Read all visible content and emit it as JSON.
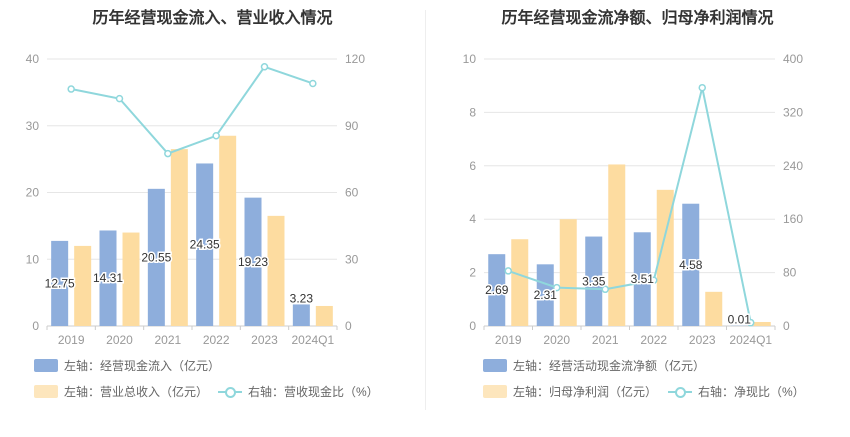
{
  "chart_data": [
    {
      "type": "bar",
      "title": "历年经营现金流入、营业收入情况",
      "categories": [
        "2019",
        "2020",
        "2021",
        "2022",
        "2023",
        "2024Q1"
      ],
      "left_axis": {
        "ticks": [
          "0",
          "10",
          "20",
          "30",
          "40"
        ],
        "ylim": [
          0,
          40
        ]
      },
      "right_axis": {
        "ticks": [
          "0",
          "30",
          "60",
          "90",
          "120"
        ],
        "ylim": [
          0,
          120
        ]
      },
      "series": [
        {
          "name": "左轴：经营现金流入（亿元）",
          "kind": "bar",
          "axis": "left",
          "color": "#8eaedc",
          "values": [
            12.75,
            14.31,
            20.55,
            24.35,
            19.23,
            3.23
          ],
          "labels": [
            "12.75",
            "14.31",
            "20.55",
            "24.35",
            "19.23",
            "3.23"
          ]
        },
        {
          "name": "左轴：营业总收入（亿元）",
          "kind": "bar",
          "axis": "left",
          "color": "#fddca0",
          "values": [
            12.0,
            14.0,
            26.5,
            28.5,
            16.5,
            3.0
          ]
        },
        {
          "name": "右轴：营收现金比（%）",
          "kind": "line",
          "axis": "right",
          "color": "#8fd7dc",
          "values": [
            106.5,
            102.2,
            77.5,
            85.5,
            116.5,
            109.0
          ]
        }
      ]
    },
    {
      "type": "bar",
      "title": "历年经营现金流净额、归母净利润情况",
      "categories": [
        "2019",
        "2020",
        "2021",
        "2022",
        "2023",
        "2024Q1"
      ],
      "left_axis": {
        "ticks": [
          "0",
          "2",
          "4",
          "6",
          "8",
          "10"
        ],
        "ylim": [
          0,
          10
        ]
      },
      "right_axis": {
        "ticks": [
          "0",
          "80",
          "160",
          "240",
          "320",
          "400"
        ],
        "ylim": [
          0,
          400
        ]
      },
      "series": [
        {
          "name": "左轴：经营活动现金流净额（亿元）",
          "kind": "bar",
          "axis": "left",
          "color": "#8eaedc",
          "values": [
            2.69,
            2.31,
            3.35,
            3.51,
            4.58,
            0.01
          ],
          "labels": [
            "2.69",
            "2.31",
            "3.35",
            "3.51",
            "4.58",
            "0.01"
          ]
        },
        {
          "name": "左轴：归母净利润（亿元）",
          "kind": "bar",
          "axis": "left",
          "color": "#fddca0",
          "values": [
            3.25,
            4.0,
            6.05,
            5.1,
            1.28,
            0.15
          ]
        },
        {
          "name": "右轴：净现比（%）",
          "kind": "line",
          "axis": "right",
          "color": "#8fd7dc",
          "values": [
            82.5,
            57.5,
            55.0,
            68.5,
            357.0,
            5.0
          ]
        }
      ]
    }
  ]
}
